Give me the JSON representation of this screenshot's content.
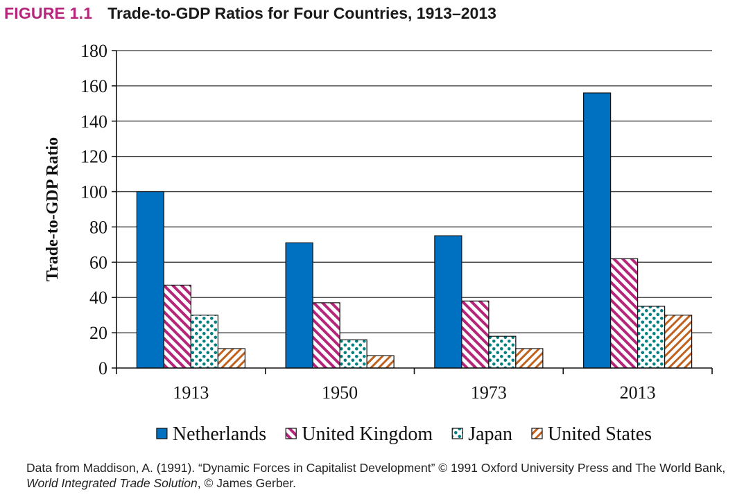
{
  "figure": {
    "number": "FIGURE 1.1",
    "title": "Trade-to-GDP Ratios for Four Countries, 1913–2013"
  },
  "chart_data": {
    "type": "bar",
    "title": "Trade-to-GDP Ratios for Four Countries, 1913–2013",
    "categories": [
      "1913",
      "1950",
      "1973",
      "2013"
    ],
    "ylabel": "Trade-to-GDP Ratio",
    "xlabel": "",
    "ylim": [
      0,
      180
    ],
    "yticks": [
      0,
      20,
      40,
      60,
      80,
      100,
      120,
      140,
      160,
      180
    ],
    "grid": true,
    "legend_position": "bottom",
    "series": [
      {
        "name": "Netherlands",
        "values": [
          100,
          71,
          75,
          156
        ],
        "color": "#0070c0",
        "pattern": "solid"
      },
      {
        "name": "United Kingdom",
        "values": [
          47,
          37,
          38,
          62
        ],
        "color": "#b5267a",
        "pattern": "diagonal-stripes"
      },
      {
        "name": "Japan",
        "values": [
          30,
          16,
          18,
          35
        ],
        "color": "#008080",
        "pattern": "dots"
      },
      {
        "name": "United States",
        "values": [
          11,
          7,
          11,
          30
        ],
        "color": "#c0621e",
        "pattern": "diagonal-stripes-reverse"
      }
    ]
  },
  "source": {
    "text_1": "Data from Maddison, A. (1991). “Dynamic Forces in Capitalist Development” © 1991 Oxford University Press and The World Bank, ",
    "italic": "World Integrated Trade Solution",
    "text_2": ", © James Gerber."
  }
}
